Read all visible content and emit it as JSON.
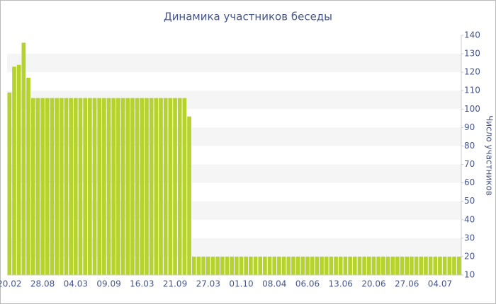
{
  "chart_data": {
    "type": "bar",
    "title": "Динамика участников беседы",
    "y_axis_label": "Число участников",
    "categories": [
      "20.02",
      null,
      null,
      null,
      null,
      null,
      null,
      "28.08",
      null,
      null,
      null,
      null,
      null,
      null,
      "04.03",
      null,
      null,
      null,
      null,
      null,
      null,
      "09.09",
      null,
      null,
      null,
      null,
      null,
      null,
      "16.03",
      null,
      null,
      null,
      null,
      null,
      null,
      "21.09",
      null,
      null,
      null,
      null,
      null,
      null,
      "27.03",
      null,
      null,
      null,
      null,
      null,
      null,
      "01.10",
      null,
      null,
      null,
      null,
      null,
      null,
      "08.04",
      null,
      null,
      null,
      null,
      null,
      null,
      "06.06",
      null,
      null,
      null,
      null,
      null,
      null,
      "13.06",
      null,
      null,
      null,
      null,
      null,
      null,
      "20.06",
      null,
      null,
      null,
      null,
      null,
      null,
      "27.06",
      null,
      null,
      null,
      null,
      null,
      null,
      "04.07",
      null,
      null,
      null,
      null
    ],
    "values": [
      109,
      123,
      124,
      136,
      117,
      106,
      106,
      106,
      106,
      106,
      106,
      106,
      106,
      106,
      106,
      106,
      106,
      106,
      106,
      106,
      106,
      106,
      106,
      106,
      106,
      106,
      106,
      106,
      106,
      106,
      106,
      106,
      106,
      106,
      106,
      106,
      106,
      106,
      96,
      20,
      20,
      20,
      20,
      20,
      20,
      20,
      20,
      20,
      20,
      20,
      20,
      20,
      20,
      20,
      20,
      20,
      20,
      20,
      20,
      20,
      20,
      20,
      20,
      20,
      20,
      20,
      20,
      20,
      20,
      20,
      20,
      20,
      20,
      20,
      20,
      20,
      20,
      20,
      20,
      20,
      20,
      20,
      20,
      20,
      20,
      20,
      20,
      20,
      20,
      20,
      20,
      20,
      20,
      20,
      20,
      20
    ],
    "color": "#b5d22f",
    "ylim": [
      10,
      140
    ],
    "yticks": [
      10,
      20,
      30,
      40,
      50,
      60,
      70,
      80,
      90,
      100,
      110,
      120,
      130,
      140
    ],
    "y_axis_side": "right",
    "grid": "bands"
  }
}
